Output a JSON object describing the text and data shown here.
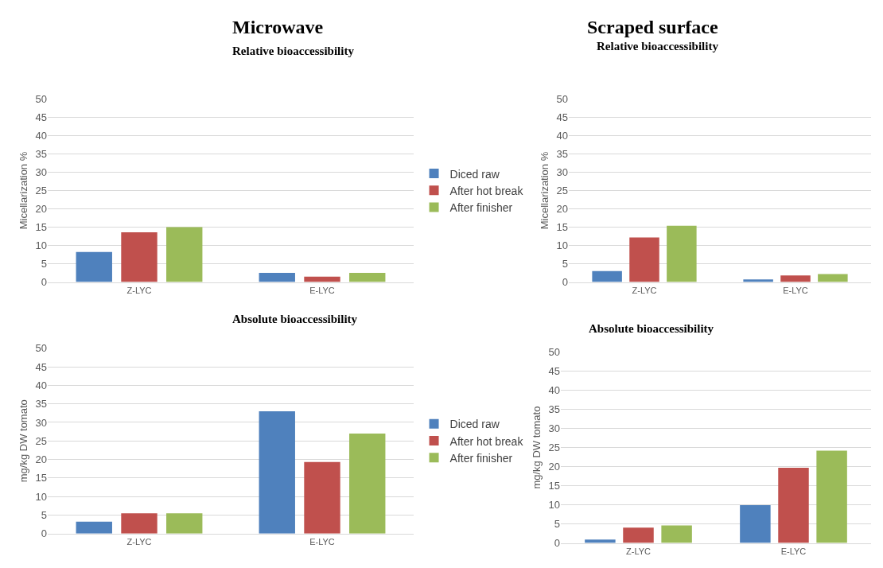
{
  "chart_data": [
    {
      "type": "bar",
      "title": "Microwave",
      "subtitle": "Relative bioaccessibility",
      "ylabel": "Micellarization %",
      "categories": [
        "Z-LYC",
        "E-LYC"
      ],
      "series": [
        {
          "name": "Diced raw",
          "color": "#4f81bd",
          "values": [
            8.2,
            2.5
          ]
        },
        {
          "name": "After hot break",
          "color": "#c0504d",
          "values": [
            13.6,
            1.5
          ]
        },
        {
          "name": "After finisher",
          "color": "#9bbb59",
          "values": [
            15,
            2.5
          ]
        }
      ],
      "ylim": [
        0,
        50
      ],
      "yticks": [
        0,
        5,
        10,
        15,
        20,
        25,
        30,
        35,
        40,
        45,
        50
      ],
      "grid": "y",
      "legend": "right"
    },
    {
      "type": "bar",
      "title": "Scraped surface",
      "subtitle": "Relative bioaccessibility",
      "ylabel": "Micellarization %",
      "categories": [
        "Z-LYC",
        "E-LYC"
      ],
      "series": [
        {
          "color": "#4f81bd",
          "values": [
            3.0,
            0.7
          ]
        },
        {
          "color": "#c0504d",
          "values": [
            12.2,
            1.8
          ]
        },
        {
          "color": "#9bbb59",
          "values": [
            15.4,
            2.2
          ]
        }
      ],
      "ylim": [
        0,
        50
      ],
      "yticks": [
        0,
        5,
        10,
        15,
        20,
        25,
        30,
        35,
        40,
        45,
        50
      ],
      "grid": "y"
    },
    {
      "type": "bar",
      "title": "Absolute bioaccessibility",
      "ylabel": "mg/kg DW tomato",
      "categories": [
        "Z-LYC",
        "E-LYC"
      ],
      "series": [
        {
          "name": "Diced raw",
          "color": "#4f81bd",
          "values": [
            3.2,
            33
          ]
        },
        {
          "name": "After hot break",
          "color": "#c0504d",
          "values": [
            5.5,
            19.3
          ]
        },
        {
          "name": "After finisher",
          "color": "#9bbb59",
          "values": [
            5.5,
            27
          ]
        }
      ],
      "ylim": [
        0,
        50
      ],
      "yticks": [
        0,
        5,
        10,
        15,
        20,
        25,
        30,
        35,
        40,
        45,
        50
      ],
      "grid": "y",
      "legend": "right"
    },
    {
      "type": "bar",
      "title": "Absolute bioaccessibility",
      "ylabel": "mg/kg DW tomato",
      "categories": [
        "Z-LYC",
        "E-LYC"
      ],
      "series": [
        {
          "color": "#4f81bd",
          "values": [
            0.9,
            9.9
          ]
        },
        {
          "color": "#c0504d",
          "values": [
            4.0,
            19.7
          ]
        },
        {
          "color": "#9bbb59",
          "values": [
            4.6,
            24.2
          ]
        }
      ],
      "ylim": [
        0,
        50
      ],
      "yticks": [
        0,
        5,
        10,
        15,
        20,
        25,
        30,
        35,
        40,
        45,
        50
      ],
      "grid": "y"
    }
  ]
}
